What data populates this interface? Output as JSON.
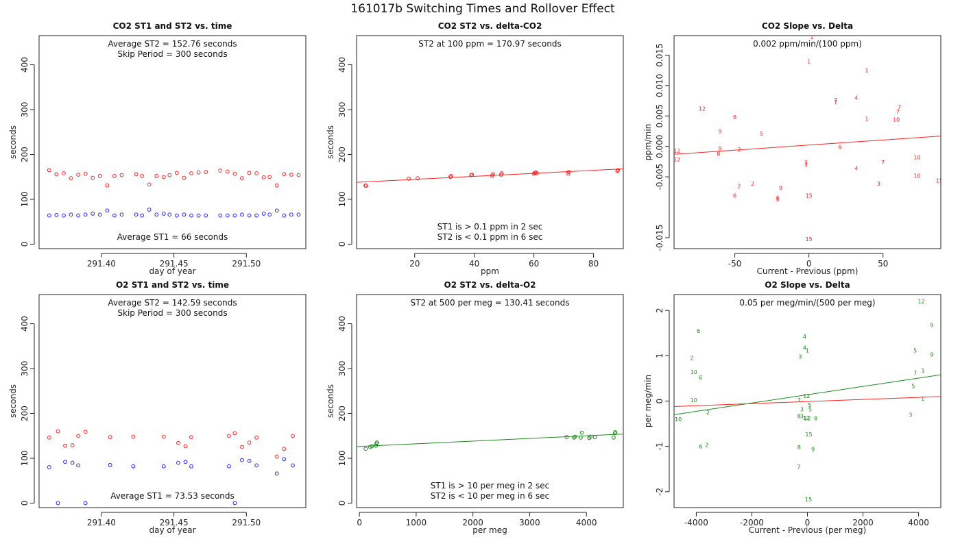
{
  "title": "161017b   Switching Times and Rollover Effect",
  "colors": {
    "red": "#ff2020",
    "blue": "#2020ff",
    "green": "#1a8a1a"
  },
  "chart_data": [
    {
      "type": "scatter",
      "title": "CO2 ST1 and ST2 vs. time",
      "xlabel": "day of year",
      "ylabel": "seconds",
      "xlim": [
        291.357,
        291.541
      ],
      "ylim": [
        -10,
        465
      ],
      "xticks": [
        291.4,
        291.45,
        291.5
      ],
      "xtick_labels": [
        "291.40",
        "291.45",
        "291.50"
      ],
      "yticks": [
        0,
        100,
        200,
        300,
        400
      ],
      "ytick_labels": [
        "0",
        "100",
        "200",
        "300",
        "400"
      ],
      "annotations": [
        {
          "text": "Average ST2 =  152.76  seconds",
          "pos": "top"
        },
        {
          "text": "Skip Period =  300  seconds",
          "pos": "top2"
        },
        {
          "text": "Average ST1 =  66  seconds",
          "pos": "bottom"
        }
      ],
      "series": [
        {
          "name": "ST2",
          "color": "red",
          "marker": "circle",
          "x": [
            291.364,
            291.369,
            291.374,
            291.379,
            291.384,
            291.389,
            291.394,
            291.399,
            291.404,
            291.409,
            291.414,
            291.424,
            291.428,
            291.433,
            291.438,
            291.443,
            291.447,
            291.452,
            291.457,
            291.462,
            291.467,
            291.472,
            291.482,
            291.487,
            291.492,
            291.497,
            291.502,
            291.507,
            291.512,
            291.516,
            291.521,
            291.526,
            291.531,
            291.536
          ],
          "y": [
            165,
            156,
            158,
            147,
            155,
            157,
            148,
            152,
            131,
            152,
            154,
            156,
            152,
            133,
            152,
            150,
            154,
            159,
            148,
            158,
            160,
            161,
            164,
            162,
            157,
            147,
            159,
            158,
            149,
            150,
            131,
            156,
            155,
            154
          ]
        },
        {
          "name": "ST1",
          "color": "blue",
          "marker": "circle",
          "x": [
            291.364,
            291.369,
            291.374,
            291.379,
            291.384,
            291.389,
            291.394,
            291.399,
            291.404,
            291.409,
            291.414,
            291.424,
            291.428,
            291.433,
            291.438,
            291.443,
            291.447,
            291.452,
            291.457,
            291.462,
            291.467,
            291.472,
            291.482,
            291.487,
            291.492,
            291.497,
            291.502,
            291.507,
            291.512,
            291.516,
            291.521,
            291.526,
            291.531,
            291.536
          ],
          "y": [
            64,
            65,
            64,
            66,
            64,
            66,
            68,
            66,
            75,
            64,
            66,
            66,
            64,
            77,
            66,
            68,
            66,
            64,
            66,
            64,
            64,
            64,
            64,
            64,
            64,
            66,
            64,
            64,
            68,
            66,
            75,
            64,
            66,
            66
          ]
        }
      ]
    },
    {
      "type": "scatter",
      "title": "CO2 ST2 vs. delta-CO2",
      "xlabel": "ppm",
      "ylabel": "seconds",
      "xlim": [
        0.5,
        90
      ],
      "ylim": [
        -10,
        465
      ],
      "xticks": [
        20,
        40,
        60,
        80
      ],
      "xtick_labels": [
        "20",
        "40",
        "60",
        "80"
      ],
      "yticks": [
        0,
        100,
        200,
        300,
        400
      ],
      "ytick_labels": [
        "0",
        "100",
        "200",
        "300",
        "400"
      ],
      "annotations": [
        {
          "text": "ST2 at 100 ppm =  170.97  seconds",
          "pos": "top"
        },
        {
          "text": "ST1 is > 0.1 ppm in 2 sec",
          "pos": "bottom2"
        },
        {
          "text": "ST2 is < 0.1 ppm in 6 sec",
          "pos": "bottom"
        }
      ],
      "fit_line": {
        "color": "red",
        "x": [
          0.5,
          90
        ],
        "y": [
          138,
          168
        ]
      },
      "series": [
        {
          "name": "ST2",
          "color": "red",
          "marker": "circle",
          "x": [
            3.5,
            3.7,
            18,
            21,
            32,
            32.2,
            39,
            39.2,
            46,
            46.3,
            49,
            49.2,
            60,
            60.3,
            60.6,
            61,
            71.5,
            71.7,
            88,
            88.2
          ],
          "y": [
            131,
            130,
            146,
            147,
            150,
            152,
            154,
            155,
            153,
            156,
            155,
            158,
            157,
            159,
            160,
            158,
            157,
            161,
            163,
            165
          ]
        }
      ]
    },
    {
      "type": "scatter",
      "title": "CO2 Slope vs. Delta",
      "xlabel": "Current - Previous (ppm)",
      "ylabel": "ppm/min",
      "xlim": [
        -91,
        89
      ],
      "ylim": [
        -0.0168,
        0.0182
      ],
      "xticks": [
        -50,
        0,
        50
      ],
      "xtick_labels": [
        "-50",
        "0",
        "50"
      ],
      "yticks": [
        -0.015,
        -0.005,
        0.0,
        0.005,
        0.01,
        0.015
      ],
      "ytick_labels": [
        "-0.015",
        "-0.005",
        "0.000",
        "0.005",
        "0.010",
        "0.015"
      ],
      "annotations": [
        {
          "text": "0.002  ppm/min/(100 ppm)",
          "pos": "top"
        }
      ],
      "fit_line": {
        "color": "red",
        "x": [
          -91,
          89
        ],
        "y": [
          -0.0013,
          0.0017
        ]
      },
      "series": [
        {
          "name": "hour labels",
          "color": "red",
          "marker": "text",
          "x": [
            2,
            0,
            39,
            32,
            18,
            18,
            61,
            60,
            39,
            59,
            -72,
            -50,
            -60,
            -32,
            21,
            -60,
            -47,
            -89,
            -89,
            -61,
            73,
            -2,
            -2,
            50,
            32,
            73,
            47,
            -38,
            -47,
            88,
            -19,
            -50,
            -21,
            -21,
            0,
            0
          ],
          "y": [
            0.018,
            0.014,
            0.0125,
            0.008,
            0.0076,
            0.0072,
            0.0065,
            0.0057,
            0.0045,
            0.0044,
            0.0062,
            0.0048,
            0.0025,
            0.0021,
            -0.0001,
            -0.0003,
            -0.0005,
            -0.0007,
            -0.0021,
            -0.0012,
            -0.0018,
            -0.0026,
            -0.003,
            -0.0026,
            -0.0036,
            -0.0048,
            -0.0061,
            -0.0061,
            -0.0065,
            -0.0056,
            -0.0068,
            -0.0081,
            -0.0084,
            -0.0087,
            -0.0081,
            -0.0152
          ],
          "labels": [
            "1",
            "1",
            "1",
            "4",
            "7",
            "7",
            "7",
            "7",
            "1",
            "10",
            "12",
            "6",
            "9",
            "5",
            "6",
            "9",
            "2",
            "12",
            "12",
            "8",
            "10",
            "3",
            "3",
            "7",
            "4",
            "10",
            "3",
            "2",
            "2",
            "15",
            "9",
            "6",
            "6",
            "6",
            "15",
            "15"
          ]
        }
      ]
    },
    {
      "type": "scatter",
      "title": "O2 ST1 and ST2 vs. time",
      "xlabel": "day of year",
      "ylabel": "seconds",
      "xlim": [
        291.357,
        291.541
      ],
      "ylim": [
        -10,
        465
      ],
      "xticks": [
        291.4,
        291.45,
        291.5
      ],
      "xtick_labels": [
        "291.40",
        "291.45",
        "291.50"
      ],
      "yticks": [
        0,
        100,
        200,
        300,
        400
      ],
      "ytick_labels": [
        "0",
        "100",
        "200",
        "300",
        "400"
      ],
      "annotations": [
        {
          "text": "Average ST2 =  142.59  seconds",
          "pos": "top"
        },
        {
          "text": "Skip Period =  300  seconds",
          "pos": "top2"
        },
        {
          "text": "Average ST1 =  73.53  seconds",
          "pos": "bottom"
        }
      ],
      "series": [
        {
          "name": "ST2",
          "color": "red",
          "marker": "circle",
          "x": [
            291.364,
            291.37,
            291.375,
            291.38,
            291.384,
            291.389,
            291.406,
            291.422,
            291.443,
            291.453,
            291.458,
            291.462,
            291.488,
            291.492,
            291.497,
            291.502,
            291.507,
            291.521,
            291.526,
            291.532
          ],
          "y": [
            146,
            160,
            128,
            129,
            150,
            159,
            147,
            148,
            148,
            134,
            127,
            147,
            150,
            156,
            125,
            135,
            146,
            104,
            121,
            150
          ]
        },
        {
          "name": "ST1",
          "color": "blue",
          "marker": "circle",
          "x": [
            291.364,
            291.37,
            291.375,
            291.38,
            291.384,
            291.389,
            291.406,
            291.422,
            291.443,
            291.453,
            291.458,
            291.462,
            291.488,
            291.492,
            291.497,
            291.502,
            291.507,
            291.521,
            291.526,
            291.532
          ],
          "y": [
            80,
            0,
            92,
            90,
            84,
            0,
            85,
            82,
            82,
            90,
            92,
            82,
            82,
            0,
            96,
            94,
            84,
            66,
            98,
            84
          ]
        }
      ]
    },
    {
      "type": "scatter",
      "title": "O2 ST2 vs. delta-O2",
      "xlabel": "per meg",
      "ylabel": "seconds",
      "xlim": [
        -50,
        4650
      ],
      "ylim": [
        -10,
        465
      ],
      "xticks": [
        0,
        1000,
        2000,
        3000,
        4000
      ],
      "xtick_labels": [
        "0",
        "1000",
        "2000",
        "3000",
        "4000"
      ],
      "yticks": [
        0,
        100,
        200,
        300,
        400
      ],
      "ytick_labels": [
        "0",
        "100",
        "200",
        "300",
        "400"
      ],
      "annotations": [
        {
          "text": "ST2 at 500 per meg =  130.41  seconds",
          "pos": "top"
        },
        {
          "text": "ST1 is > 10 per meg in 2 sec",
          "pos": "bottom2"
        },
        {
          "text": "ST2 is < 10 per meg in 6 sec",
          "pos": "bottom"
        }
      ],
      "fit_line": {
        "color": "green",
        "x": [
          -50,
          4650
        ],
        "y": [
          126,
          154
        ]
      },
      "series": [
        {
          "name": "ST2",
          "color": "green",
          "marker": "circle",
          "x": [
            110,
            190,
            220,
            290,
            300,
            310,
            3650,
            3780,
            3800,
            3900,
            3920,
            4050,
            4070,
            4150,
            4480,
            4500,
            4510
          ],
          "y": [
            121,
            125,
            127,
            128,
            133,
            135,
            147,
            146,
            148,
            146,
            157,
            145,
            148,
            147,
            146,
            156,
            158
          ]
        }
      ]
    },
    {
      "type": "scatter",
      "title": "O2 Slope vs. Delta",
      "xlabel": "Current - Previous (per meg)",
      "ylabel": "per meg/min",
      "xlim": [
        -4800,
        4800
      ],
      "ylim": [
        -2.35,
        2.35
      ],
      "xticks": [
        -4000,
        -2000,
        0,
        2000,
        4000
      ],
      "xtick_labels": [
        "-4000",
        "-2000",
        "0",
        "2000",
        "4000"
      ],
      "yticks": [
        -2,
        -1,
        0,
        1,
        2
      ],
      "ytick_labels": [
        "-2",
        "-1",
        "0",
        "1",
        "2"
      ],
      "annotations": [
        {
          "text": "0.05  per meg/min/(500 per meg)",
          "pos": "top"
        }
      ],
      "fit_lines": [
        {
          "color": "green",
          "x": [
            -4800,
            4800
          ],
          "y": [
            -0.3,
            0.58
          ]
        },
        {
          "color": "red",
          "x": [
            -4800,
            4800
          ],
          "y": [
            -0.12,
            0.1
          ]
        }
      ],
      "series": [
        {
          "name": "hour labels",
          "color": "green",
          "marker": "text",
          "x": [
            4100,
            4470,
            -3920,
            -100,
            4480,
            -100,
            0,
            3880,
            -4160,
            4160,
            3810,
            -4090,
            -3850,
            3880,
            -4090,
            -300,
            -30,
            80,
            -4650,
            -3580,
            -200,
            100,
            -300,
            -200,
            -40,
            4150,
            3710,
            -260,
            50,
            300,
            0,
            -300,
            -3840,
            -3620,
            200,
            -310,
            40
          ],
          "y": [
            2.2,
            1.68,
            1.55,
            1.43,
            1.03,
            1.18,
            1.12,
            1.12,
            0.95,
            0.67,
            0.33,
            0.64,
            0.52,
            0.62,
            0.02,
            0.02,
            0.11,
            -0.08,
            -0.4,
            -0.25,
            -0.18,
            -0.18,
            -0.33,
            -0.33,
            -0.37,
            0.05,
            -0.3,
            0.98,
            -0.73,
            -0.38,
            -0.38,
            -1.02,
            -1.0,
            -0.97,
            -1.06,
            -1.45,
            -2.17
          ],
          "labels": [
            "12",
            "9",
            "6",
            "4",
            "9",
            "4",
            "1",
            "5",
            "2",
            "1",
            "5",
            "10",
            "6",
            "7",
            "10",
            "7",
            "12",
            "5",
            "10",
            "2",
            "3",
            "5",
            "8",
            "3",
            "12",
            "1",
            "3",
            "3",
            "15",
            "8",
            "12",
            "8",
            "6",
            "2",
            "9",
            "7",
            "15"
          ]
        }
      ]
    }
  ]
}
